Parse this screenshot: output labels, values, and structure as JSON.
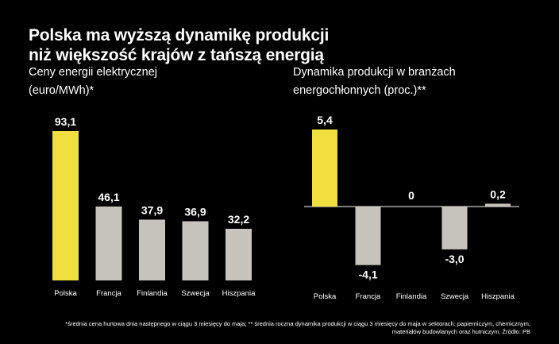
{
  "title_lines": [
    "Polska ma wyższą dynamikę produkcji",
    "niż większość krajów z tańszą energią"
  ],
  "colors": {
    "background": "#000000",
    "highlight": "#f0df3f",
    "bar": "#c7c4be",
    "text": "#ffffff"
  },
  "chart_data": [
    {
      "type": "bar",
      "title_lines": [
        "Ceny energii elektrycznej",
        "(euro/MWh)*"
      ],
      "categories": [
        "Polska",
        "Francja",
        "Finlandia",
        "Szwecja",
        "Hiszpania"
      ],
      "values": [
        93.1,
        46.1,
        37.9,
        36.9,
        32.2
      ],
      "value_labels": [
        "93,1",
        "46,1",
        "37,9",
        "36,9",
        "32,2"
      ],
      "highlight_category": "Polska",
      "ylim": [
        0,
        100
      ]
    },
    {
      "type": "bar",
      "title_lines": [
        "Dynamika produkcji w branżach",
        "energochłonnych (proc.)**"
      ],
      "categories": [
        "Polska",
        "Francja",
        "Finlandia",
        "Szwecja",
        "Hiszpania"
      ],
      "values": [
        5.4,
        -4.1,
        0,
        -3.0,
        0.2
      ],
      "value_labels": [
        "5,4",
        "-4,1",
        "0",
        "-3,0",
        "0,2"
      ],
      "highlight_category": "Polska",
      "ylim": [
        -5,
        6
      ]
    }
  ],
  "footnote_lines": [
    "*średnia cena hurtowa dnia następnego w ciągu 3 miesięcy do maja; ** średnia roczna dynamika produkcji w ciągu 3 miesięcy do maja w sektorach: papierniczym, chemicznym,",
    "materiałów budowlanych oraz hutniczym. Źródło: PB"
  ]
}
